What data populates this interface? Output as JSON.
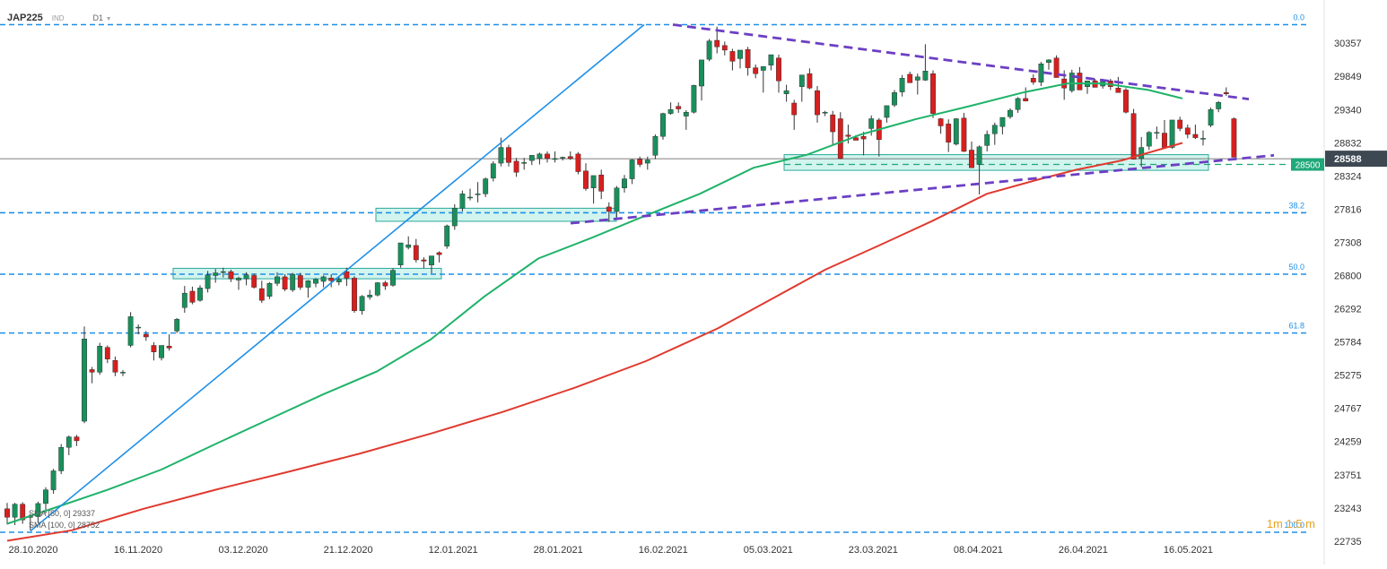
{
  "header": {
    "symbol": "JAP225",
    "market": "IND",
    "interval": "D1"
  },
  "colors": {
    "bull": "#1a8f5c",
    "bear": "#d61f1f",
    "sma50": "#1fb36a",
    "sma100": "#e03a2f",
    "fib": "#1e8fe8",
    "trend_purple": "#6c3fc4",
    "support_zone": "#8fe3d4",
    "current_price_bg": "#3d4853",
    "level_tag_bg": "#1fa87a",
    "blue_trend": "#1e8fe8"
  },
  "chart_data": {
    "type": "candlestick",
    "y_axis": {
      "ticks": [
        22735,
        23243,
        23751,
        24259,
        24767,
        25275,
        25784,
        26292,
        26800,
        27308,
        27816,
        28324,
        28832,
        29340,
        29849,
        30357
      ],
      "range": [
        22640,
        30860
      ]
    },
    "x_axis": {
      "tick_labels": [
        "28.10.2020",
        "16.11.2020",
        "03.12.2020",
        "21.12.2020",
        "12.01.2021",
        "28.01.2021",
        "16.02.2021",
        "05.03.2021",
        "23.03.2021",
        "08.04.2021",
        "26.04.2021",
        "16.05.2021"
      ]
    },
    "fibonacci": [
      {
        "label": "0.0",
        "value": 30640
      },
      {
        "label": "38.2",
        "value": 27760
      },
      {
        "label": "50.0",
        "value": 26820
      },
      {
        "label": "61.8",
        "value": 25920
      },
      {
        "label": "100.0",
        "value": 22870
      }
    ],
    "current_price": {
      "label": "28588",
      "value": 28588
    },
    "level_tag": {
      "label": "28500",
      "value": 28500
    },
    "indicators": [
      {
        "name": "SMA [50, 0]",
        "value": "29337"
      },
      {
        "name": "SMA [100, 0]",
        "value": "28752"
      }
    ],
    "corner_label": "1m 1:5 m"
  }
}
